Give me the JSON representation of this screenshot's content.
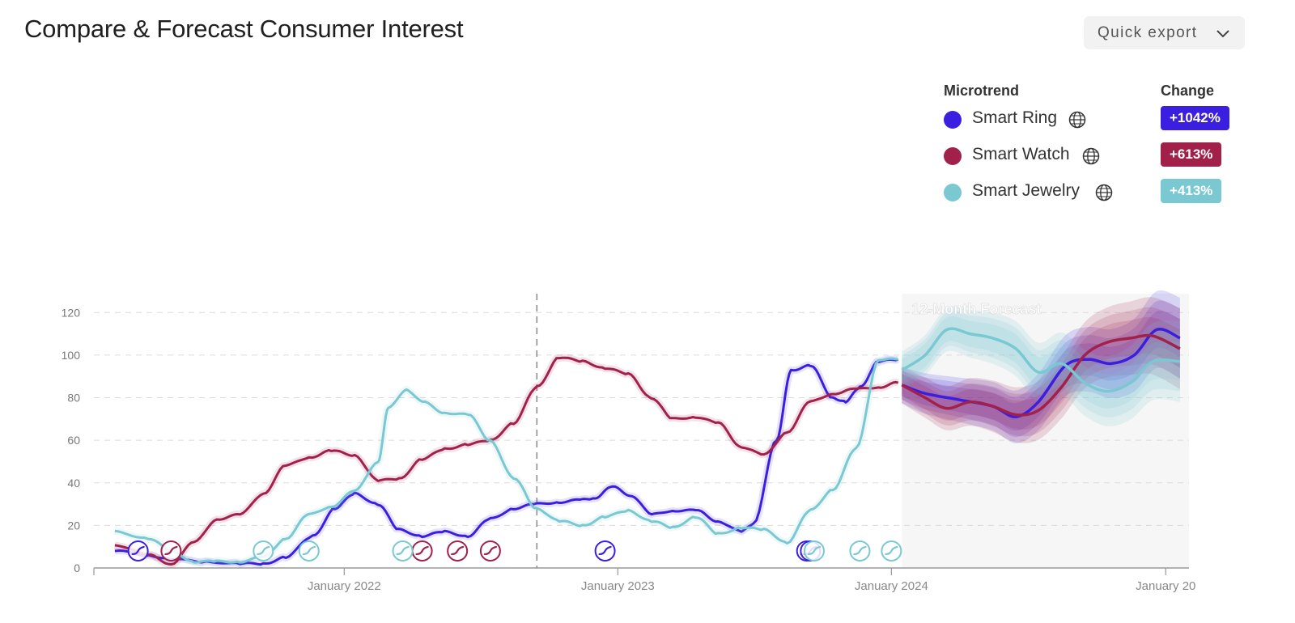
{
  "header": {
    "title": "Compare & Forecast Consumer Interest",
    "export_label": "Quick export"
  },
  "legend": {
    "microtrend_header": "Microtrend",
    "change_header": "Change",
    "items": [
      {
        "name": "Smart Ring",
        "change": "+1042%",
        "color": "#3b1fe0",
        "icon": "globe-icon"
      },
      {
        "name": "Smart Watch",
        "change": "+613%",
        "color": "#a2214a",
        "icon": "globe-icon"
      },
      {
        "name": "Smart Jewelry",
        "change": "+413%",
        "color": "#79c8d2",
        "icon": "globe-icon"
      }
    ]
  },
  "chart_data": {
    "type": "line",
    "forecast_label": "12-Month Forecast",
    "x_ticks": [
      "January 2022",
      "January 2023",
      "January 2024",
      "January 20"
    ],
    "y_ticks": [
      0,
      20,
      40,
      60,
      80,
      100,
      120
    ],
    "ylim": [
      0,
      130
    ],
    "xlim": [
      "2021-02-01",
      "2025-02-01"
    ],
    "forecast_start": "2024-01-15",
    "divider_date": "2022-09-15",
    "grid": true,
    "series": [
      {
        "name": "Smart Ring",
        "color": "#3b1fe0",
        "x": [
          "2021-03-01",
          "2021-04-15",
          "2021-05-15",
          "2021-07-01",
          "2021-08-15",
          "2021-09-15",
          "2021-10-15",
          "2021-11-20",
          "2021-12-20",
          "2022-01-15",
          "2022-02-15",
          "2022-03-15",
          "2022-04-15",
          "2022-05-15",
          "2022-06-15",
          "2022-07-15",
          "2022-08-15",
          "2022-09-15",
          "2022-10-15",
          "2022-11-15",
          "2022-12-01",
          "2022-12-25",
          "2023-01-20",
          "2023-02-15",
          "2023-03-15",
          "2023-04-15",
          "2023-05-15",
          "2023-06-15",
          "2023-07-01",
          "2023-08-01",
          "2023-08-20",
          "2023-09-15",
          "2023-10-15",
          "2023-11-01",
          "2023-11-20",
          "2023-12-15",
          "2024-01-10"
        ],
        "values": [
          8,
          6,
          4,
          3,
          2,
          2,
          5,
          15,
          28,
          35,
          30,
          18,
          15,
          17,
          15,
          23,
          28,
          30,
          31,
          32,
          33,
          38,
          34,
          25,
          27,
          27,
          22,
          17,
          21,
          60,
          93,
          95,
          80,
          78,
          85,
          97,
          98
        ],
        "forecast": {
          "x": [
            "2024-01-15",
            "2024-02-15",
            "2024-04-01",
            "2024-05-15",
            "2024-06-15",
            "2024-07-15",
            "2024-08-20",
            "2024-09-20",
            "2024-10-20",
            "2024-11-20",
            "2024-12-20",
            "2025-01-20"
          ],
          "values": [
            86,
            82,
            79,
            76,
            71,
            78,
            95,
            98,
            96,
            100,
            112,
            108
          ]
        }
      },
      {
        "name": "Smart Watch",
        "color": "#a2214a",
        "x": [
          "2021-03-01",
          "2021-04-15",
          "2021-05-15",
          "2021-06-15",
          "2021-07-15",
          "2021-08-15",
          "2021-09-15",
          "2021-10-15",
          "2021-11-15",
          "2021-12-15",
          "2022-01-15",
          "2022-02-15",
          "2022-03-15",
          "2022-04-15",
          "2022-05-15",
          "2022-06-15",
          "2022-07-15",
          "2022-08-15",
          "2022-09-15",
          "2022-10-15",
          "2022-11-15",
          "2022-12-15",
          "2023-01-15",
          "2023-02-15",
          "2023-03-15",
          "2023-04-15",
          "2023-05-15",
          "2023-06-15",
          "2023-07-15",
          "2023-08-15",
          "2023-09-15",
          "2023-10-15",
          "2023-11-15",
          "2023-12-15",
          "2024-01-10"
        ],
        "values": [
          11,
          6,
          2,
          12,
          23,
          25,
          35,
          48,
          52,
          55,
          53,
          41,
          42,
          51,
          56,
          58,
          60,
          68,
          85,
          99,
          97,
          94,
          91,
          80,
          70,
          71,
          68,
          57,
          53,
          64,
          78,
          82,
          84,
          85,
          87
        ],
        "forecast": {
          "x": [
            "2024-01-15",
            "2024-02-15",
            "2024-03-15",
            "2024-04-15",
            "2024-05-15",
            "2024-06-15",
            "2024-07-15",
            "2024-08-15",
            "2024-09-15",
            "2024-10-15",
            "2024-11-15",
            "2024-12-15",
            "2025-01-20"
          ],
          "values": [
            86,
            80,
            75,
            78,
            76,
            72,
            74,
            85,
            100,
            106,
            108,
            109,
            103
          ]
        }
      },
      {
        "name": "Smart Jewelry",
        "color": "#79c8d2",
        "x": [
          "2021-03-01",
          "2021-04-15",
          "2021-05-15",
          "2021-06-15",
          "2021-07-15",
          "2021-08-15",
          "2021-09-15",
          "2021-10-15",
          "2021-11-15",
          "2021-12-15",
          "2022-01-15",
          "2022-02-15",
          "2022-03-01",
          "2022-03-25",
          "2022-04-15",
          "2022-05-15",
          "2022-06-15",
          "2022-07-15",
          "2022-08-15",
          "2022-09-15",
          "2022-10-15",
          "2022-11-15",
          "2022-12-15",
          "2023-01-15",
          "2023-02-15",
          "2023-03-15",
          "2023-04-15",
          "2023-05-15",
          "2023-06-15",
          "2023-07-15",
          "2023-08-15",
          "2023-09-15",
          "2023-10-15",
          "2023-11-15",
          "2023-12-15",
          "2024-01-10"
        ],
        "values": [
          17,
          14,
          8,
          3,
          3,
          3,
          5,
          14,
          25,
          29,
          36,
          50,
          75,
          84,
          78,
          73,
          72,
          60,
          42,
          28,
          22,
          20,
          24,
          27,
          22,
          19,
          24,
          16,
          19,
          18,
          12,
          27,
          37,
          56,
          98,
          98
        ],
        "forecast": {
          "x": [
            "2024-01-15",
            "2024-02-15",
            "2024-03-15",
            "2024-04-15",
            "2024-05-15",
            "2024-06-15",
            "2024-07-15",
            "2024-08-15",
            "2024-09-15",
            "2024-10-15",
            "2024-11-15",
            "2024-12-15",
            "2025-01-20"
          ],
          "values": [
            93,
            100,
            112,
            110,
            108,
            103,
            92,
            96,
            87,
            83,
            87,
            97,
            97
          ]
        }
      }
    ],
    "markers": [
      {
        "series": 0,
        "x": [
          "2021-04-01",
          "2022-12-15",
          "2023-09-10",
          "2023-09-15"
        ]
      },
      {
        "series": 1,
        "x": [
          "2021-05-15",
          "2022-04-15",
          "2022-06-01",
          "2022-07-15"
        ]
      },
      {
        "series": 2,
        "x": [
          "2021-09-15",
          "2021-11-15",
          "2022-03-20",
          "2023-09-20",
          "2023-11-20",
          "2024-01-01"
        ]
      }
    ]
  }
}
